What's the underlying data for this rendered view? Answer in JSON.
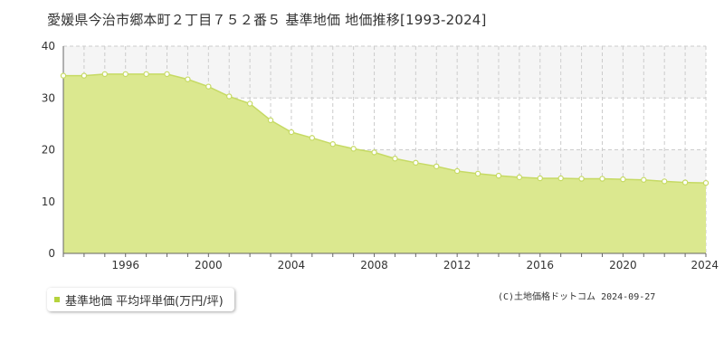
{
  "title": "愛媛県今治市郷本町２丁目７５２番５ 基準地価 地価推移[1993-2024]",
  "copyright": "(C)土地価格ドットコム 2024-09-27",
  "colors": {
    "fill": "#dbe88f",
    "line": "#c6da64",
    "marker_fill": "#ffffff",
    "legend_swatch": "#b5d33d",
    "band": "#f5f5f5",
    "grid": "#cccccc",
    "axis": "#666666"
  },
  "chart_data": {
    "type": "area",
    "title": "愛媛県今治市郷本町２丁目７５２番５ 基準地価 地価推移[1993-2024]",
    "xlabel": "",
    "ylabel": "",
    "x": [
      1993,
      1994,
      1995,
      1996,
      1997,
      1998,
      1999,
      2000,
      2001,
      2002,
      2003,
      2004,
      2005,
      2006,
      2007,
      2008,
      2009,
      2010,
      2011,
      2012,
      2013,
      2014,
      2015,
      2016,
      2017,
      2018,
      2019,
      2020,
      2021,
      2022,
      2023,
      2024
    ],
    "series": [
      {
        "name": "基準地価 平均坪単価(万円/坪)",
        "values": [
          34.3,
          34.3,
          34.6,
          34.6,
          34.6,
          34.6,
          33.6,
          32.2,
          30.3,
          28.9,
          25.7,
          23.4,
          22.3,
          21.1,
          20.2,
          19.5,
          18.3,
          17.5,
          16.8,
          15.9,
          15.4,
          15.0,
          14.7,
          14.5,
          14.5,
          14.4,
          14.4,
          14.3,
          14.2,
          13.9,
          13.7,
          13.6
        ]
      }
    ],
    "ylim": [
      0,
      40
    ],
    "y_ticks": [
      0,
      10,
      20,
      30,
      40
    ],
    "x_ticks": [
      1996,
      2000,
      2004,
      2008,
      2012,
      2016,
      2020,
      2024
    ],
    "grid": true,
    "legend_position": "bottom-left"
  }
}
